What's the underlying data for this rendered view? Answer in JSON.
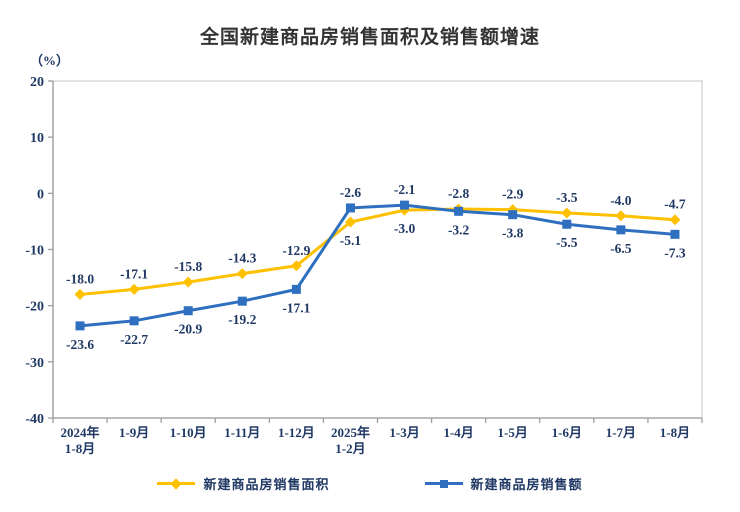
{
  "chart_data": {
    "type": "line",
    "title": "全国新建商品房销售面积及销售额增速",
    "ylabel": "（%）",
    "xlabel": "",
    "categories": [
      "2024年\n1-8月",
      "1-9月",
      "1-10月",
      "1-11月",
      "1-12月",
      "2025年\n1-2月",
      "1-3月",
      "1-4月",
      "1-5月",
      "1-6月",
      "1-7月",
      "1-8月"
    ],
    "series": [
      {
        "name": "新建商品房销售面积",
        "color": "#FFC000",
        "marker": "diamond",
        "values": [
          -18.0,
          -17.1,
          -15.8,
          -14.3,
          -12.9,
          -5.1,
          -3.0,
          -2.8,
          -2.9,
          -3.5,
          -4.0,
          -4.7
        ]
      },
      {
        "name": "新建商品房销售额",
        "color": "#2E6FC0",
        "marker": "square",
        "values": [
          -23.6,
          -22.7,
          -20.9,
          -19.2,
          -17.1,
          -2.6,
          -2.1,
          -3.2,
          -3.8,
          -5.5,
          -6.5,
          -7.3
        ]
      }
    ],
    "ylim": [
      -40,
      20
    ],
    "ytick_step": 10,
    "grid": false,
    "data_labels": true,
    "legend_position": "bottom",
    "colors": {
      "plot_border": "#D9D9D9",
      "axis_line": "#9E9E9E",
      "tick_text": "#203864",
      "title_text": "#333333"
    }
  }
}
